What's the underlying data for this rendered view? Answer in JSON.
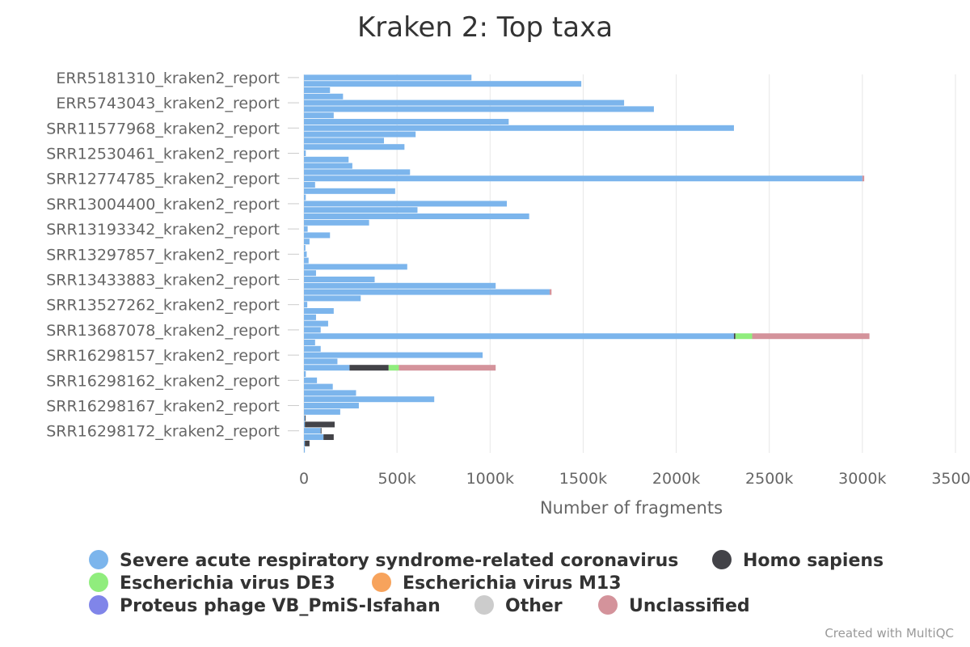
{
  "chart_data": {
    "type": "bar",
    "orientation": "horizontal",
    "stacked": true,
    "title": "Kraken 2: Top taxa",
    "xlabel": "Number of fragments",
    "ylabel": "",
    "xlim": [
      0,
      3500000
    ],
    "x_ticks": [
      "0",
      "500k",
      "1000k",
      "1500k",
      "2000k",
      "2500k",
      "3000k",
      "3500k"
    ],
    "grid": true,
    "legend_position": "bottom",
    "categories": [
      "ERR5181310_kraken2_report",
      "row-02",
      "row-03",
      "row-04",
      "ERR5743043_kraken2_report",
      "row-06",
      "row-07",
      "row-08",
      "SRR11577968_kraken2_report",
      "row-10",
      "row-11",
      "row-12",
      "SRR12530461_kraken2_report",
      "row-14",
      "row-15",
      "row-16",
      "SRR12774785_kraken2_report",
      "row-18",
      "row-19",
      "row-20",
      "SRR13004400_kraken2_report",
      "row-22",
      "row-23",
      "row-24",
      "SRR13193342_kraken2_report",
      "row-26",
      "row-27",
      "row-28",
      "SRR13297857_kraken2_report",
      "row-30",
      "row-31",
      "row-32",
      "SRR13433883_kraken2_report",
      "row-34",
      "row-35",
      "row-36",
      "SRR13527262_kraken2_report",
      "row-38",
      "row-39",
      "row-40",
      "SRR13687078_kraken2_report",
      "row-42",
      "row-43",
      "row-44",
      "SRR16298157_kraken2_report",
      "row-46",
      "row-47",
      "row-48",
      "SRR16298162_kraken2_report",
      "row-50",
      "row-51",
      "row-52",
      "SRR16298167_kraken2_report",
      "row-54",
      "row-55",
      "row-56",
      "SRR16298172_kraken2_report",
      "row-58",
      "row-59",
      "row-60"
    ],
    "labeled_categories": [
      "ERR5181310_kraken2_report",
      "ERR5743043_kraken2_report",
      "SRR11577968_kraken2_report",
      "SRR12530461_kraken2_report",
      "SRR12774785_kraken2_report",
      "SRR13004400_kraken2_report",
      "SRR13193342_kraken2_report",
      "SRR13297857_kraken2_report",
      "SRR13433883_kraken2_report",
      "SRR13527262_kraken2_report",
      "SRR13687078_kraken2_report",
      "SRR16298157_kraken2_report",
      "SRR16298162_kraken2_report",
      "SRR16298167_kraken2_report",
      "SRR16298172_kraken2_report"
    ],
    "series": [
      {
        "name": "Severe acute respiratory syndrome-related coronavirus",
        "color": "#7cb5ec",
        "values": [
          900000,
          1490000,
          140000,
          210000,
          1720000,
          1880000,
          160000,
          1100000,
          2310000,
          600000,
          430000,
          540000,
          10000,
          240000,
          260000,
          570000,
          3000000,
          60000,
          490000,
          10000,
          1090000,
          610000,
          1210000,
          350000,
          20000,
          140000,
          30000,
          8000,
          15000,
          25000,
          555000,
          65000,
          380000,
          1030000,
          1320000,
          305000,
          18000,
          160000,
          65000,
          130000,
          90000,
          2310000,
          60000,
          90000,
          960000,
          180000,
          245000,
          10000,
          70000,
          155000,
          280000,
          700000,
          295000,
          195000,
          5000,
          5000,
          90000,
          105000,
          5000,
          5000
        ]
      },
      {
        "name": "Homo sapiens",
        "color": "#434348",
        "values": [
          0,
          0,
          0,
          0,
          0,
          0,
          0,
          0,
          0,
          0,
          0,
          0,
          0,
          0,
          0,
          0,
          0,
          0,
          0,
          0,
          0,
          0,
          0,
          0,
          0,
          0,
          0,
          0,
          0,
          0,
          0,
          0,
          0,
          0,
          0,
          0,
          0,
          0,
          0,
          0,
          0,
          8000,
          0,
          0,
          0,
          0,
          210000,
          0,
          0,
          0,
          0,
          0,
          0,
          0,
          3000,
          160000,
          3000,
          55000,
          25000,
          0
        ]
      },
      {
        "name": "Escherichia virus DE3",
        "color": "#90ed7d",
        "values": [
          0,
          0,
          0,
          0,
          0,
          0,
          0,
          0,
          0,
          0,
          0,
          0,
          0,
          0,
          0,
          0,
          0,
          0,
          0,
          0,
          0,
          0,
          0,
          0,
          0,
          0,
          0,
          0,
          0,
          0,
          0,
          0,
          0,
          0,
          0,
          0,
          0,
          0,
          0,
          0,
          0,
          90000,
          0,
          0,
          0,
          0,
          55000,
          0,
          0,
          0,
          0,
          0,
          0,
          0,
          0,
          0,
          0,
          0,
          0,
          0
        ]
      },
      {
        "name": "Escherichia virus M13",
        "color": "#f7a35c",
        "values": [
          0,
          0,
          0,
          0,
          0,
          0,
          0,
          0,
          0,
          0,
          0,
          0,
          0,
          0,
          0,
          0,
          0,
          0,
          0,
          0,
          0,
          0,
          0,
          0,
          0,
          0,
          0,
          0,
          0,
          0,
          0,
          0,
          0,
          0,
          0,
          0,
          0,
          0,
          0,
          0,
          0,
          0,
          0,
          0,
          0,
          0,
          0,
          0,
          0,
          0,
          0,
          0,
          0,
          0,
          0,
          0,
          0,
          0,
          0,
          0
        ]
      },
      {
        "name": "Proteus phage VB_PmiS-Isfahan",
        "color": "#8085e9",
        "values": [
          0,
          0,
          0,
          0,
          0,
          0,
          0,
          0,
          0,
          0,
          0,
          0,
          0,
          0,
          0,
          0,
          0,
          0,
          0,
          0,
          0,
          0,
          0,
          0,
          0,
          0,
          0,
          0,
          0,
          0,
          0,
          0,
          0,
          0,
          0,
          0,
          0,
          0,
          0,
          0,
          0,
          0,
          0,
          0,
          0,
          0,
          0,
          0,
          0,
          0,
          0,
          0,
          0,
          0,
          0,
          0,
          0,
          0,
          0,
          0
        ]
      },
      {
        "name": "Other",
        "color": "#cccccc",
        "values": [
          0,
          0,
          0,
          0,
          0,
          0,
          0,
          0,
          0,
          0,
          0,
          0,
          0,
          0,
          0,
          0,
          0,
          0,
          0,
          0,
          0,
          0,
          0,
          0,
          0,
          0,
          0,
          0,
          0,
          0,
          0,
          0,
          0,
          0,
          0,
          0,
          0,
          0,
          0,
          0,
          0,
          0,
          0,
          0,
          0,
          0,
          0,
          0,
          0,
          0,
          0,
          0,
          0,
          0,
          0,
          0,
          0,
          0,
          0,
          0
        ]
      },
      {
        "name": "Unclassified",
        "color": "#d4939b",
        "values": [
          0,
          0,
          0,
          0,
          0,
          0,
          0,
          0,
          0,
          0,
          0,
          0,
          0,
          0,
          0,
          0,
          10000,
          0,
          0,
          0,
          0,
          0,
          0,
          0,
          0,
          0,
          0,
          0,
          0,
          0,
          0,
          0,
          0,
          0,
          10000,
          0,
          0,
          0,
          0,
          0,
          0,
          630000,
          0,
          0,
          0,
          0,
          520000,
          0,
          0,
          0,
          0,
          0,
          0,
          0,
          0,
          0,
          0,
          0,
          0,
          0
        ]
      }
    ]
  },
  "footer": {
    "credit": "Created with MultiQC"
  }
}
